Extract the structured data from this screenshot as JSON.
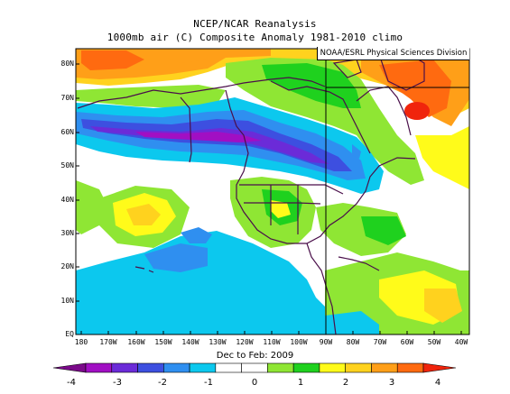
{
  "title_line1": "NCEP/NCAR Reanalysis",
  "title_line2": "1000mb air (C) Composite Anomaly 1981-2010 climo",
  "credit": "NOAA/ESRL Physical Sciences Division",
  "period": "Dec to Feb: 2009",
  "lat_labels": [
    "80N",
    "70N",
    "60N",
    "50N",
    "40N",
    "30N",
    "20N",
    "10N",
    "EQ"
  ],
  "lon_labels": [
    "180",
    "170W",
    "160W",
    "150W",
    "140W",
    "130W",
    "120W",
    "110W",
    "100W",
    "90W",
    "80W",
    "70W",
    "60W",
    "50W",
    "40W"
  ],
  "colorbar": {
    "labels": [
      "-4",
      "-3",
      "-2",
      "-1",
      "0",
      "1",
      "2",
      "3",
      "4"
    ],
    "colors": [
      "#7b0a8a",
      "#a10fc3",
      "#6b2bd8",
      "#3d4fe0",
      "#2f8ff0",
      "#0cc8ee",
      "#ffffff",
      "#ffffff",
      "#8fe634",
      "#1fd11e",
      "#fffb1a",
      "#ffd21e",
      "#ff9f18",
      "#ff6a10",
      "#f0240c"
    ]
  },
  "colors": {
    "background": "#ffffff",
    "frame": "#000000",
    "boundaries": "#4a0f4a"
  }
}
